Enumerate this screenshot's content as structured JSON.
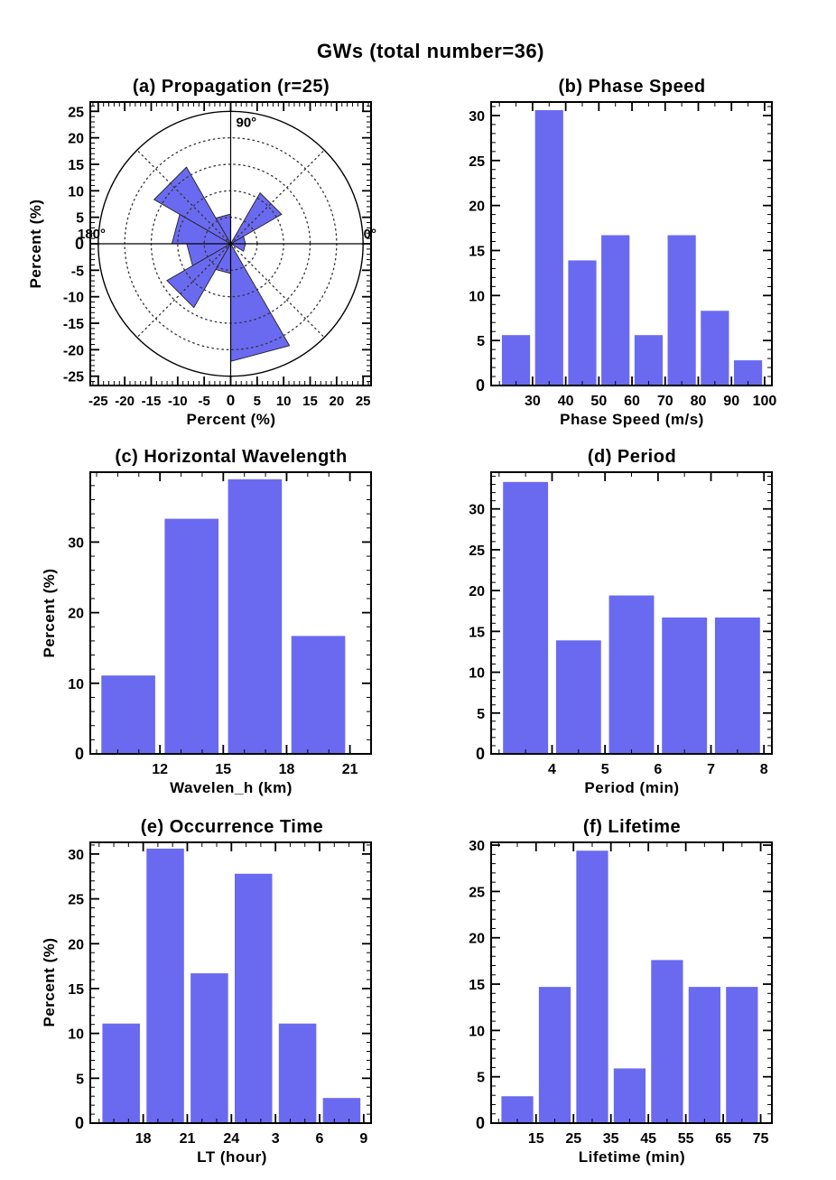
{
  "page": {
    "title": "GWs (total number=36)",
    "background": "#ffffff"
  },
  "colors": {
    "bar_fill": "#6a6af0",
    "axis": "#000000",
    "grid": "#333333",
    "text": "#000000"
  },
  "chart_data": [
    {
      "type": "rose",
      "panel": "a",
      "title": "(a) Propagation (r=25)",
      "xlabel": "Percent (%)",
      "ylabel": "Percent (%)",
      "sector_width_deg": 30,
      "sectors": [
        {
          "center_deg": 15,
          "percent": 2.8
        },
        {
          "center_deg": 45,
          "percent": 11.1
        },
        {
          "center_deg": 75,
          "percent": 0
        },
        {
          "center_deg": 105,
          "percent": 5.6
        },
        {
          "center_deg": 135,
          "percent": 16.7
        },
        {
          "center_deg": 165,
          "percent": 11.1
        },
        {
          "center_deg": 195,
          "percent": 8.3
        },
        {
          "center_deg": 225,
          "percent": 13.9
        },
        {
          "center_deg": 255,
          "percent": 5.6
        },
        {
          "center_deg": 285,
          "percent": 22.2
        },
        {
          "center_deg": 315,
          "percent": 0
        },
        {
          "center_deg": 345,
          "percent": 2.8
        }
      ],
      "ring_radii": [
        5,
        10,
        15,
        20
      ],
      "outer_radius": 25,
      "diagonal_angles": [
        45,
        135,
        225,
        315
      ],
      "axis_ticks": [
        -25,
        -20,
        -15,
        -10,
        -5,
        0,
        5,
        10,
        15,
        20,
        25
      ],
      "minor_tick_step": 1,
      "axis_limit": 26.5,
      "angle_labels": [
        {
          "angle_deg": 90,
          "text": "90°"
        },
        {
          "angle_deg": 180,
          "text": "180°"
        },
        {
          "angle_deg": 0,
          "text": "0°"
        }
      ]
    },
    {
      "type": "bar",
      "panel": "b",
      "title": "(b) Phase Speed",
      "xlabel": "Phase Speed (m/s)",
      "bin_centers": [
        25,
        35,
        45,
        55,
        65,
        75,
        85,
        95
      ],
      "bin_width": 10,
      "bar_fraction": 0.85,
      "values": [
        5.6,
        30.6,
        13.9,
        16.7,
        5.6,
        16.7,
        8.3,
        2.8
      ],
      "xticks": [
        30,
        40,
        50,
        60,
        70,
        80,
        90,
        100
      ],
      "xminor": 5,
      "yticks": [
        0,
        5,
        10,
        15,
        20,
        25,
        30
      ],
      "yminor": 1,
      "xlim": [
        17.5,
        102.2
      ],
      "ylim": [
        0,
        31.5
      ]
    },
    {
      "type": "bar",
      "panel": "c",
      "title": "(c) Horizontal Wavelength",
      "xlabel": "Wavelen_h (km)",
      "ylabel": "Percent (%)",
      "bin_centers": [
        10.5,
        13.5,
        16.5,
        19.5
      ],
      "bin_width": 3,
      "bar_fraction": 0.85,
      "values": [
        11.1,
        33.3,
        38.9,
        16.7
      ],
      "xticks": [
        12,
        15,
        18,
        21
      ],
      "xminor": 1,
      "yticks": [
        0,
        10,
        20,
        30
      ],
      "yminor": 2,
      "xlim": [
        8.7,
        22.0
      ],
      "ylim": [
        0,
        39.9
      ]
    },
    {
      "type": "bar",
      "panel": "d",
      "title": "(d) Period",
      "xlabel": "Period (min)",
      "bin_centers": [
        3.5,
        4.5,
        5.5,
        6.5,
        7.5
      ],
      "bin_width": 1,
      "bar_fraction": 0.85,
      "values": [
        33.3,
        13.9,
        19.4,
        16.7,
        16.7
      ],
      "xticks": [
        4,
        5,
        6,
        7,
        8
      ],
      "xminor": 0.5,
      "yticks": [
        0,
        5,
        10,
        15,
        20,
        25,
        30
      ],
      "yminor": 1,
      "xlim": [
        2.85,
        8.15
      ],
      "ylim": [
        0,
        34.5
      ]
    },
    {
      "type": "bar",
      "panel": "e",
      "title": "(e) Occurrence Time",
      "xlabel": "LT (hour)",
      "ylabel": "Percent (%)",
      "bin_centers": [
        16.5,
        19.5,
        22.5,
        25.5,
        28.5,
        31.5
      ],
      "bin_width": 3,
      "bar_fraction": 0.85,
      "values": [
        11.1,
        30.6,
        16.7,
        27.8,
        11.1,
        2.8
      ],
      "xticks": [
        18,
        21,
        24,
        27,
        30,
        33
      ],
      "xtick_labels": [
        "18",
        "21",
        "24",
        "3",
        "6",
        "9"
      ],
      "xminor": 1,
      "yticks": [
        0,
        5,
        10,
        15,
        20,
        25,
        30
      ],
      "yminor": 1,
      "xlim": [
        14.4,
        33.5
      ],
      "ylim": [
        0,
        31.3
      ]
    },
    {
      "type": "bar",
      "panel": "f",
      "title": "(f) Lifetime",
      "xlabel": "Lifetime (min)",
      "bin_centers": [
        10,
        20,
        30,
        40,
        50,
        60,
        70
      ],
      "bin_width": 10,
      "bar_fraction": 0.85,
      "values": [
        2.9,
        14.7,
        29.4,
        5.9,
        17.6,
        14.7,
        14.7
      ],
      "xticks": [
        15,
        25,
        35,
        45,
        55,
        65,
        75
      ],
      "xminor": 5,
      "yticks": [
        0,
        5,
        10,
        15,
        20,
        25,
        30
      ],
      "yminor": 1,
      "xlim": [
        3,
        78
      ],
      "ylim": [
        0,
        30.3
      ]
    }
  ]
}
